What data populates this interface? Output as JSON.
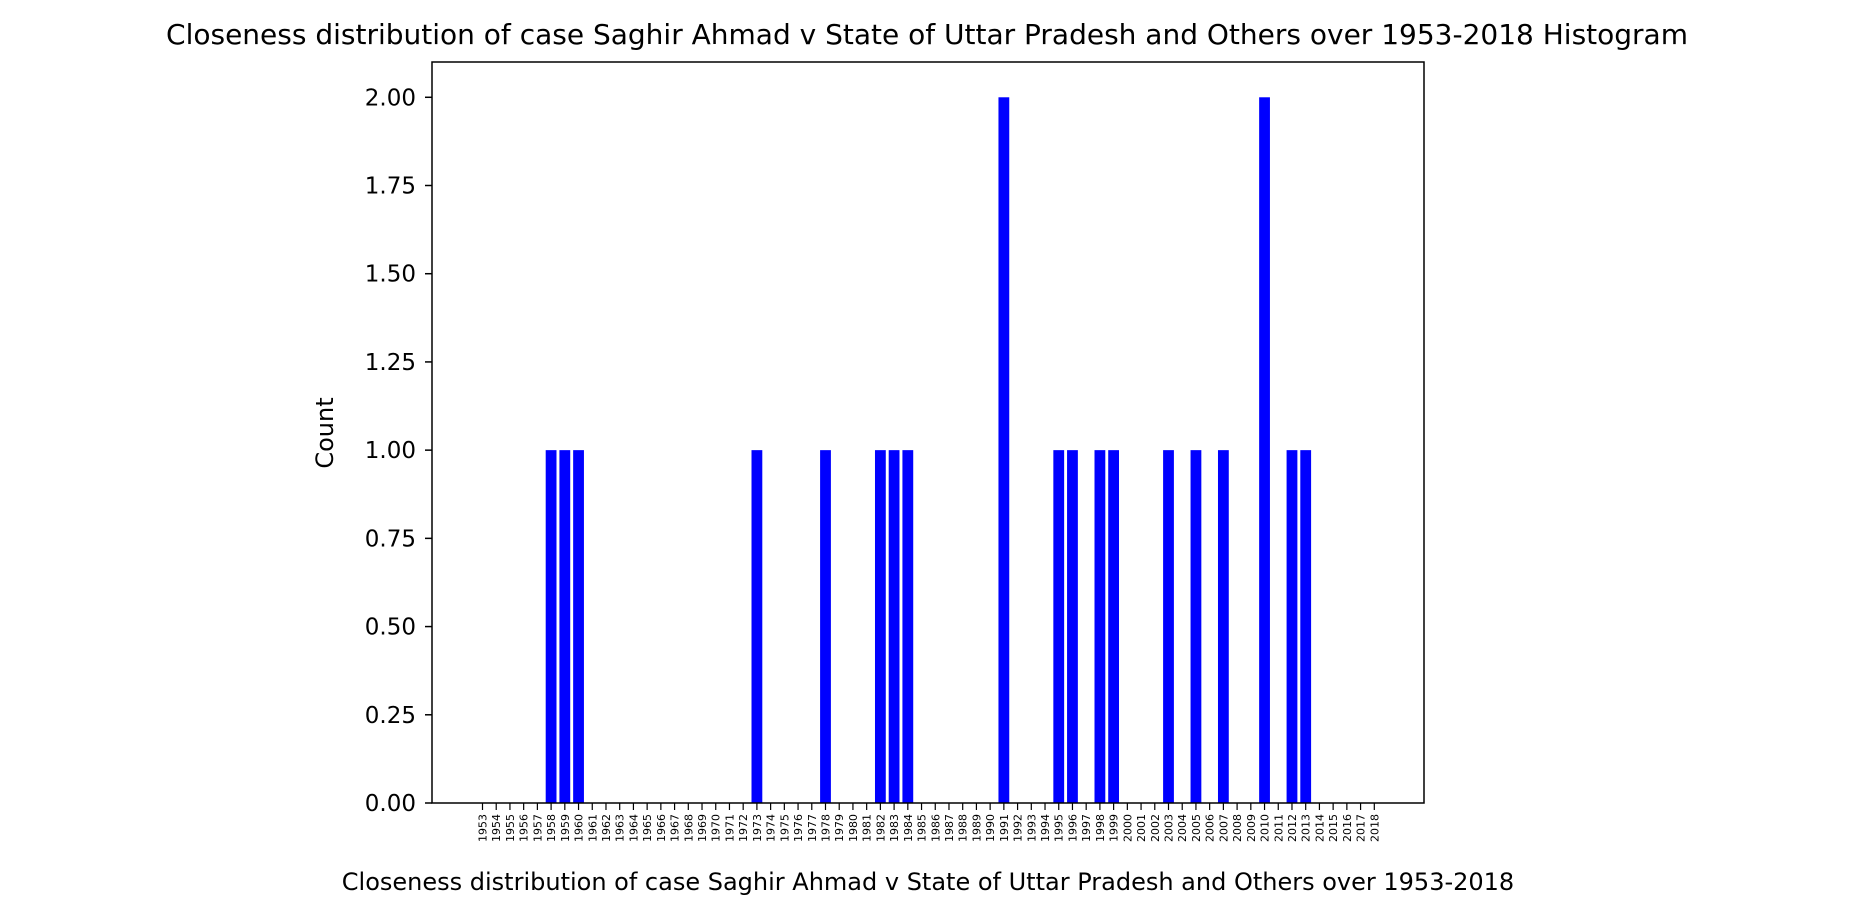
{
  "chart_data": {
    "type": "bar",
    "title": "Closeness distribution of case Saghir Ahmad v State of Uttar Pradesh and Others over 1953-2018 Histogram",
    "xlabel": "Closeness distribution of case Saghir Ahmad v State of Uttar Pradesh and Others over 1953-2018",
    "ylabel": "Count",
    "ylim": [
      0,
      2.1
    ],
    "yticks": [
      "0.00",
      "0.25",
      "0.50",
      "0.75",
      "1.00",
      "1.25",
      "1.50",
      "1.75",
      "2.00"
    ],
    "categories": [
      "1953",
      "1954",
      "1955",
      "1956",
      "1957",
      "1958",
      "1959",
      "1960",
      "1961",
      "1962",
      "1963",
      "1964",
      "1965",
      "1966",
      "1967",
      "1968",
      "1969",
      "1970",
      "1971",
      "1972",
      "1973",
      "1974",
      "1975",
      "1976",
      "1977",
      "1978",
      "1979",
      "1980",
      "1981",
      "1982",
      "1983",
      "1984",
      "1985",
      "1986",
      "1987",
      "1988",
      "1989",
      "1990",
      "1991",
      "1992",
      "1993",
      "1994",
      "1995",
      "1996",
      "1997",
      "1998",
      "1999",
      "2000",
      "2001",
      "2002",
      "2003",
      "2004",
      "2005",
      "2006",
      "2007",
      "2008",
      "2009",
      "2010",
      "2011",
      "2012",
      "2013",
      "2014",
      "2015",
      "2016",
      "2017",
      "2018"
    ],
    "bars": [
      {
        "x": 1958,
        "value": 1
      },
      {
        "x": 1959,
        "value": 1
      },
      {
        "x": 1960,
        "value": 1
      },
      {
        "x": 1973,
        "value": 1
      },
      {
        "x": 1978,
        "value": 1
      },
      {
        "x": 1982,
        "value": 1
      },
      {
        "x": 1983,
        "value": 1
      },
      {
        "x": 1984,
        "value": 1
      },
      {
        "x": 1991,
        "value": 2
      },
      {
        "x": 1995,
        "value": 1
      },
      {
        "x": 1996,
        "value": 1
      },
      {
        "x": 1998,
        "value": 1
      },
      {
        "x": 1999,
        "value": 1
      },
      {
        "x": 2003,
        "value": 1
      },
      {
        "x": 2005,
        "value": 1
      },
      {
        "x": 2007,
        "value": 1
      },
      {
        "x": 2010,
        "value": 2
      },
      {
        "x": 2012,
        "value": 1
      },
      {
        "x": 2013,
        "value": 1
      }
    ],
    "bar_color": "#0000ff",
    "grid": false,
    "legend": "none"
  }
}
